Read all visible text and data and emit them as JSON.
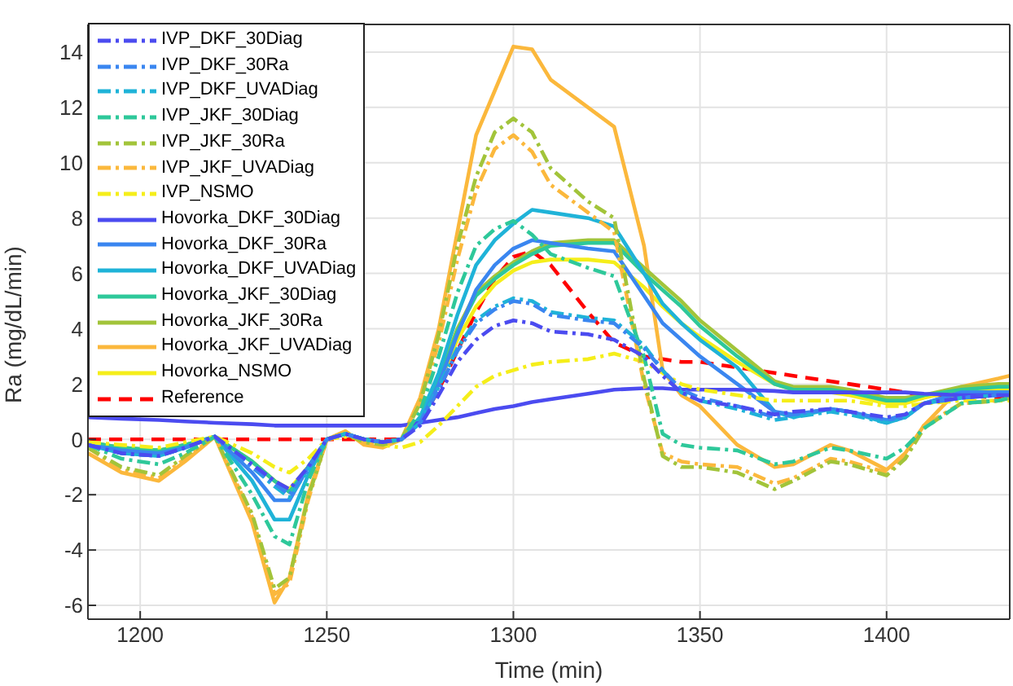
{
  "chart_data": {
    "type": "line",
    "xlabel": "Time (min)",
    "ylabel": "Ra (mg/dL/min)",
    "xlim": [
      1186,
      1433
    ],
    "ylim": [
      -6.5,
      15
    ],
    "xticks": [
      1200,
      1250,
      1300,
      1350,
      1400
    ],
    "yticks": [
      -6,
      -4,
      -2,
      0,
      2,
      4,
      6,
      8,
      10,
      12,
      14
    ],
    "grid": true,
    "legend": "top left",
    "x": [
      1186,
      1195,
      1205,
      1212,
      1220,
      1230,
      1236,
      1240,
      1245,
      1250,
      1255,
      1260,
      1265,
      1270,
      1275,
      1280,
      1285,
      1290,
      1295,
      1300,
      1305,
      1310,
      1320,
      1327,
      1335,
      1340,
      1345,
      1350,
      1360,
      1370,
      1375,
      1385,
      1390,
      1400,
      1405,
      1410,
      1420,
      1430,
      1433
    ],
    "series": [
      {
        "name": "IVP_DKF_30Diag",
        "color": "#4b4bf0",
        "line_style": "dashdot",
        "values": [
          -0.2,
          -0.5,
          -0.6,
          -0.3,
          0.1,
          -0.9,
          -1.5,
          -1.8,
          -1.0,
          0,
          0.2,
          0,
          -0.1,
          0,
          0.5,
          1.6,
          2.8,
          3.6,
          4.1,
          4.3,
          4.2,
          3.9,
          3.8,
          3.6,
          3.0,
          2.3,
          1.7,
          1.4,
          1.2,
          0.9,
          1.0,
          1.1,
          1.0,
          0.8,
          0.9,
          1.3,
          1.5,
          1.6,
          1.6
        ]
      },
      {
        "name": "IVP_DKF_30Ra",
        "color": "#3a86f0",
        "line_style": "dashdot",
        "values": [
          -0.2,
          -0.5,
          -0.6,
          -0.3,
          0.1,
          -1.0,
          -1.6,
          -2.0,
          -1.1,
          0,
          0.2,
          0,
          -0.1,
          0,
          0.6,
          1.8,
          3.2,
          4.2,
          4.7,
          5.0,
          4.9,
          4.5,
          4.3,
          4.2,
          3.3,
          2.5,
          1.8,
          1.5,
          1.2,
          0.8,
          0.9,
          1.1,
          1.0,
          0.7,
          0.9,
          1.3,
          1.5,
          1.6,
          1.6
        ]
      },
      {
        "name": "IVP_DKF_UVADiag",
        "color": "#1fb3d8",
        "line_style": "dashdot",
        "values": [
          -0.2,
          -0.5,
          -0.6,
          -0.3,
          0.1,
          -1.0,
          -1.7,
          -2.1,
          -1.1,
          0,
          0.2,
          0,
          -0.1,
          0,
          0.6,
          1.9,
          3.3,
          4.3,
          4.8,
          5.1,
          5.0,
          4.6,
          4.4,
          4.3,
          3.4,
          2.5,
          1.7,
          1.4,
          1.1,
          0.7,
          0.8,
          1.0,
          0.9,
          0.6,
          0.8,
          1.3,
          1.5,
          1.6,
          1.6
        ]
      },
      {
        "name": "IVP_JKF_30Diag",
        "color": "#2ec89a",
        "line_style": "dashdot",
        "values": [
          -0.2,
          -0.7,
          -0.9,
          -0.5,
          0.1,
          -2.0,
          -3.5,
          -3.8,
          -1.5,
          0,
          0.2,
          0,
          -0.1,
          0,
          1.0,
          3.0,
          5.3,
          7.0,
          7.6,
          7.9,
          7.4,
          6.7,
          6.2,
          5.9,
          3.0,
          0.2,
          -0.2,
          -0.3,
          -0.4,
          -0.9,
          -0.8,
          -0.3,
          -0.4,
          -0.7,
          -0.3,
          0.4,
          1.3,
          1.4,
          1.5
        ]
      },
      {
        "name": "IVP_JKF_30Ra",
        "color": "#a2c43a",
        "line_style": "dashdot",
        "values": [
          -0.3,
          -1.0,
          -1.3,
          -0.6,
          0.1,
          -2.7,
          -5.4,
          -5.0,
          -2.1,
          0,
          0.2,
          -0.1,
          -0.2,
          0,
          1.3,
          3.8,
          7.0,
          9.5,
          11.1,
          11.6,
          11.1,
          9.8,
          8.6,
          8.0,
          2.2,
          -0.6,
          -1.0,
          -1.0,
          -1.2,
          -1.8,
          -1.5,
          -0.8,
          -0.9,
          -1.3,
          -0.7,
          0.4,
          1.3,
          1.4,
          1.5
        ]
      },
      {
        "name": "IVP_JKF_UVADiag",
        "color": "#fbb83c",
        "line_style": "dashdot",
        "values": [
          -0.3,
          -1.1,
          -1.4,
          -0.7,
          0.1,
          -2.8,
          -5.6,
          -5.2,
          -2.2,
          0,
          0.2,
          -0.1,
          -0.2,
          0,
          1.2,
          3.5,
          6.5,
          9.0,
          10.5,
          11.0,
          10.4,
          9.2,
          8.2,
          7.5,
          2.0,
          -0.5,
          -0.8,
          -0.9,
          -1.0,
          -1.6,
          -1.4,
          -0.7,
          -0.8,
          -1.2,
          -0.6,
          0.5,
          1.3,
          1.4,
          1.5
        ]
      },
      {
        "name": "IVP_NSMO",
        "color": "#f5ee1a",
        "line_style": "dashdot",
        "values": [
          -0.1,
          -0.2,
          -0.3,
          -0.1,
          0.1,
          -0.5,
          -1.0,
          -1.2,
          -0.7,
          0,
          0.1,
          0,
          -0.2,
          -0.3,
          -0.1,
          0.5,
          1.2,
          1.9,
          2.3,
          2.5,
          2.7,
          2.8,
          2.9,
          3.1,
          2.8,
          2.4,
          2.0,
          1.8,
          1.6,
          1.4,
          1.4,
          1.4,
          1.4,
          1.2,
          1.2,
          1.3,
          1.4,
          1.4,
          1.4
        ]
      },
      {
        "name": "Hovorka_DKF_30Diag",
        "color": "#4b4bf0",
        "line_style": "solid",
        "values": [
          0.8,
          0.75,
          0.7,
          0.65,
          0.6,
          0.55,
          0.5,
          0.5,
          0.5,
          0.5,
          0.5,
          0.5,
          0.5,
          0.5,
          0.6,
          0.7,
          0.8,
          0.95,
          1.1,
          1.2,
          1.35,
          1.45,
          1.65,
          1.8,
          1.85,
          1.85,
          1.8,
          1.8,
          1.8,
          1.75,
          1.7,
          1.7,
          1.7,
          1.7,
          1.7,
          1.65,
          1.6,
          1.6,
          1.6
        ]
      },
      {
        "name": "Hovorka_DKF_30Ra",
        "color": "#3a86f0",
        "line_style": "solid",
        "values": [
          -0.2,
          -0.4,
          -0.5,
          -0.3,
          0.1,
          -1.2,
          -2.2,
          -2.2,
          -1.0,
          0,
          0.2,
          0,
          -0.1,
          0,
          0.6,
          2.0,
          3.8,
          5.4,
          6.3,
          6.9,
          7.2,
          7.1,
          6.9,
          6.8,
          5.2,
          4.2,
          3.6,
          3.0,
          2.0,
          1.0,
          0.9,
          1.1,
          1.0,
          0.7,
          0.8,
          1.3,
          1.7,
          1.7,
          1.7
        ]
      },
      {
        "name": "Hovorka_DKF_UVADiag",
        "color": "#1fb3d8",
        "line_style": "solid",
        "values": [
          -0.2,
          -0.5,
          -0.6,
          -0.3,
          0.1,
          -1.5,
          -2.9,
          -2.9,
          -1.3,
          0,
          0.2,
          0,
          -0.1,
          0,
          0.8,
          2.4,
          4.5,
          6.3,
          7.2,
          7.8,
          8.3,
          8.2,
          8.0,
          7.7,
          6.0,
          4.9,
          4.2,
          3.6,
          2.6,
          1.0,
          0.8,
          1.1,
          1.0,
          0.6,
          0.8,
          1.3,
          1.7,
          1.7,
          1.7
        ]
      },
      {
        "name": "Hovorka_JKF_30Diag",
        "color": "#2ec89a",
        "line_style": "solid",
        "values": [
          -0.1,
          -0.3,
          -0.4,
          -0.2,
          0.1,
          -0.8,
          -1.5,
          -1.9,
          -1.0,
          0,
          0.2,
          0,
          -0.1,
          0,
          0.8,
          2.1,
          3.9,
          5.2,
          5.8,
          6.3,
          6.7,
          7.0,
          7.1,
          7.1,
          6.0,
          5.4,
          4.8,
          4.1,
          3.0,
          2.0,
          1.8,
          1.8,
          1.7,
          1.4,
          1.4,
          1.6,
          1.8,
          1.9,
          1.9
        ]
      },
      {
        "name": "Hovorka_JKF_30Ra",
        "color": "#a2c43a",
        "line_style": "solid",
        "values": [
          -0.1,
          -0.3,
          -0.4,
          -0.2,
          0.1,
          -0.8,
          -1.5,
          -1.9,
          -1.0,
          0,
          0.2,
          0,
          -0.1,
          0,
          0.8,
          2.2,
          4.0,
          5.3,
          5.9,
          6.4,
          6.8,
          7.1,
          7.2,
          7.2,
          6.2,
          5.6,
          5.0,
          4.3,
          3.2,
          2.1,
          1.9,
          1.9,
          1.8,
          1.5,
          1.5,
          1.6,
          1.9,
          2.0,
          2.0
        ]
      },
      {
        "name": "Hovorka_JKF_UVADiag",
        "color": "#fbb83c",
        "line_style": "solid",
        "values": [
          -0.5,
          -1.2,
          -1.5,
          -0.8,
          0.1,
          -3.0,
          -5.9,
          -5.0,
          -2.0,
          0,
          0.3,
          -0.2,
          -0.3,
          0,
          1.5,
          4.0,
          7.5,
          11.0,
          12.6,
          14.2,
          14.1,
          13.0,
          12.0,
          11.3,
          7.0,
          2.5,
          1.6,
          1.2,
          -0.2,
          -1.0,
          -0.9,
          -0.2,
          -0.4,
          -1.1,
          -0.5,
          0.5,
          1.9,
          2.2,
          2.3
        ]
      },
      {
        "name": "Hovorka_NSMO",
        "color": "#f5ee1a",
        "line_style": "solid",
        "values": [
          -0.1,
          -0.3,
          -0.4,
          -0.2,
          0.1,
          -0.8,
          -1.5,
          -1.8,
          -1.0,
          0,
          0.2,
          0,
          -0.1,
          0,
          0.7,
          2.0,
          3.6,
          4.8,
          5.6,
          6.1,
          6.4,
          6.5,
          6.5,
          6.4,
          5.5,
          4.8,
          4.2,
          3.7,
          2.8,
          2.0,
          1.8,
          1.7,
          1.6,
          1.3,
          1.3,
          1.5,
          1.8,
          1.8,
          1.8
        ]
      },
      {
        "name": "Reference",
        "color": "#ff0000",
        "line_style": "dashed",
        "values": [
          0,
          0,
          0,
          0,
          0,
          0,
          0,
          0,
          0,
          0,
          0,
          0,
          0,
          0,
          0.6,
          1.8,
          3.2,
          4.6,
          5.8,
          6.6,
          6.8,
          6.3,
          4.6,
          3.5,
          3.0,
          2.9,
          2.8,
          2.8,
          2.6,
          2.4,
          2.3,
          2.1,
          2.0,
          1.8,
          1.7,
          1.6,
          1.6,
          1.5,
          1.5
        ]
      }
    ]
  }
}
